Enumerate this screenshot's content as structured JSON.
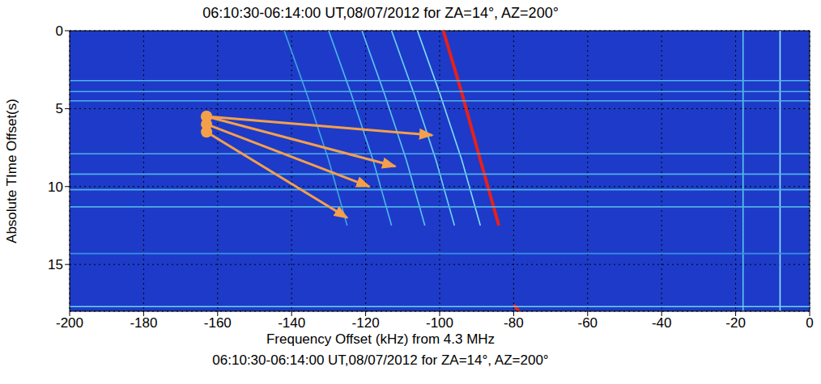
{
  "chart_data": {
    "type": "line",
    "title": "06:10:30-06:14:00 UT,08/07/2012 for ZA=14°, AZ=200°",
    "subtitle": "06:10:30-06:14:00 UT,08/07/2012 for ZA=14°, AZ=200°",
    "x_label": "Frequency Offset (kHz) from 4.3 MHz",
    "y_label": "Absolute TIme Offset(s)",
    "xlim": [
      -200,
      0
    ],
    "xticks": [
      -200,
      -180,
      -160,
      -140,
      -120,
      -100,
      -80,
      -60,
      -40,
      -20,
      0
    ],
    "ylim": [
      0,
      18
    ],
    "yticks": [
      0,
      5,
      10,
      15
    ],
    "grid": true,
    "series": [
      {
        "color": "#e8201a",
        "x": [
          -99,
          -94,
          -89,
          -84
        ],
        "values": [
          0,
          4,
          8.3,
          12.5
        ]
      },
      {
        "color": "#e8201a",
        "x": [
          -80,
          -78.5
        ],
        "values": [
          17.6,
          18
        ]
      },
      {
        "color": "#7fe0f4",
        "x": [
          -106,
          -100,
          -94,
          -89
        ],
        "values": [
          0,
          4,
          8.3,
          12.5
        ]
      },
      {
        "color": "#6cd4f0",
        "x": [
          -113,
          -107,
          -101,
          -96
        ],
        "values": [
          0,
          4,
          8.3,
          12.5
        ]
      },
      {
        "color": "#5cc6ec",
        "x": [
          -121,
          -115,
          -109,
          -104
        ],
        "values": [
          0,
          4,
          8.3,
          12.5
        ]
      },
      {
        "color": "#4cb8e8",
        "x": [
          -130,
          -124,
          -118,
          -113
        ],
        "values": [
          0,
          4,
          8.3,
          12.5
        ]
      },
      {
        "color": "#3fa4e0",
        "x": [
          -142,
          -136,
          -130,
          -125
        ],
        "values": [
          0,
          4,
          8.3,
          12.5
        ]
      },
      {
        "color": "#5cc6ec",
        "x": [
          -18,
          -18
        ],
        "values": [
          0,
          18
        ]
      },
      {
        "color": "#8fe6f8",
        "x": [
          -8,
          -8
        ],
        "values": [
          0,
          18
        ]
      },
      {
        "color": "#4fb0e8",
        "x": [
          -200,
          0
        ],
        "values": [
          3.2,
          3.2
        ]
      },
      {
        "color": "#4fb0e8",
        "x": [
          -200,
          0
        ],
        "values": [
          3.9,
          3.9
        ]
      },
      {
        "color": "#4fb0e8",
        "x": [
          -200,
          0
        ],
        "values": [
          4.5,
          4.5
        ]
      },
      {
        "color": "#4fb0e8",
        "x": [
          -200,
          0
        ],
        "values": [
          7.9,
          7.9
        ]
      },
      {
        "color": "#4fb0e8",
        "x": [
          -200,
          0
        ],
        "values": [
          9.2,
          9.2
        ]
      },
      {
        "color": "#4fb0e8",
        "x": [
          -200,
          0
        ],
        "values": [
          10.2,
          10.2
        ]
      },
      {
        "color": "#4fb0e8",
        "x": [
          -200,
          0
        ],
        "values": [
          11.3,
          11.3
        ]
      },
      {
        "color": "#3a8ee0",
        "x": [
          -200,
          0
        ],
        "values": [
          14.3,
          14.3
        ]
      },
      {
        "color": "#6cd4f0",
        "x": [
          -200,
          0
        ],
        "values": [
          17.7,
          17.7
        ]
      }
    ],
    "arrows": [
      {
        "color": "#f4a04a",
        "x": [
          -163,
          -102
        ],
        "y": [
          5.5,
          6.7
        ]
      },
      {
        "color": "#f4a04a",
        "x": [
          -163,
          -112
        ],
        "y": [
          5.5,
          8.7
        ]
      },
      {
        "color": "#f4a04a",
        "x": [
          -163,
          -119
        ],
        "y": [
          6,
          10
        ]
      },
      {
        "color": "#f4a04a",
        "x": [
          -163,
          -125
        ],
        "y": [
          6.5,
          12
        ]
      }
    ]
  }
}
